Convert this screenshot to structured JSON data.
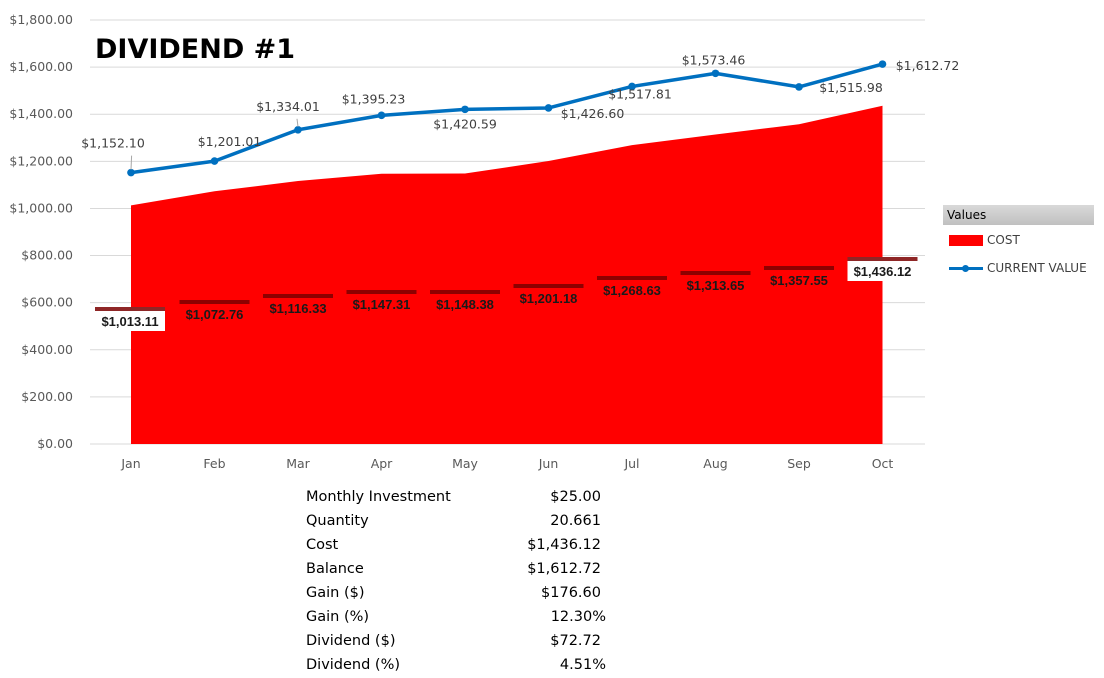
{
  "chart_data": {
    "type": "area+line",
    "title": "DIVIDEND #1",
    "categories": [
      "Jan",
      "Feb",
      "Mar",
      "Apr",
      "May",
      "Jun",
      "Jul",
      "Aug",
      "Sep",
      "Oct"
    ],
    "ylim": [
      0,
      1800
    ],
    "yticks": [
      "$0.00",
      "$200.00",
      "$400.00",
      "$600.00",
      "$800.00",
      "$1,000.00",
      "$1,200.00",
      "$1,400.00",
      "$1,600.00",
      "$1,800.00"
    ],
    "ytick_values": [
      0,
      200,
      400,
      600,
      800,
      1000,
      1200,
      1400,
      1600,
      1800
    ],
    "grid": true,
    "legend_title": "Values",
    "legend_position": "right",
    "series": [
      {
        "name": "COST",
        "kind": "area",
        "color": "#ff0000",
        "values": [
          1013.11,
          1072.76,
          1116.33,
          1147.31,
          1148.38,
          1201.18,
          1268.63,
          1313.65,
          1357.55,
          1436.12
        ],
        "labels": [
          "$1,013.11",
          "$1,072.76",
          "$1,116.33",
          "$1,147.31",
          "$1,148.38",
          "$1,201.18",
          "$1,268.63",
          "$1,313.65",
          "$1,357.55",
          "$1,436.12"
        ]
      },
      {
        "name": "CURRENT VALUE",
        "kind": "line",
        "color": "#0070c0",
        "values": [
          1152.1,
          1201.01,
          1334.01,
          1395.23,
          1420.59,
          1426.6,
          1517.81,
          1573.46,
          1515.98,
          1612.72
        ],
        "labels": [
          "$1,152.10",
          "$1,201.01",
          "$1,334.01",
          "$1,395.23",
          "$1,420.59",
          "$1,426.60",
          "$1,517.81",
          "$1,573.46",
          "$1,515.98",
          "$1,612.72"
        ]
      }
    ]
  },
  "summary": [
    {
      "label": "Monthly Investment",
      "value": "$25.00"
    },
    {
      "label": "Quantity",
      "value": "20.661"
    },
    {
      "label": "Cost",
      "value": "$1,436.12"
    },
    {
      "label": "Balance",
      "value": "$1,612.72"
    },
    {
      "label": "Gain ($)",
      "value": "$176.60"
    },
    {
      "label": "Gain (%)",
      "value": "12.30%"
    },
    {
      "label": "Dividend ($)",
      "value": "$72.72"
    },
    {
      "label": "Dividend (%)",
      "value": "4.51%"
    }
  ]
}
